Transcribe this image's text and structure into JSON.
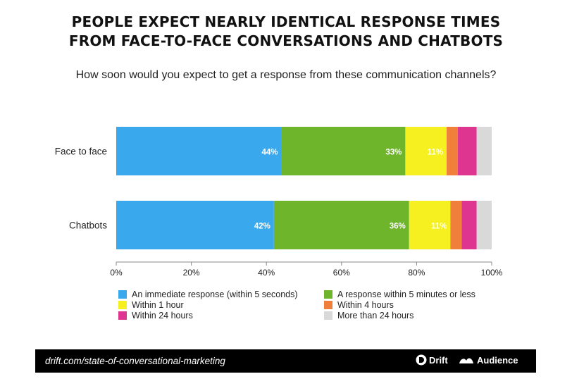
{
  "title_lines": [
    "PEOPLE EXPECT NEARLY IDENTICAL RESPONSE TIMES",
    "FROM FACE-TO-FACE CONVERSATIONS AND CHATBOTS"
  ],
  "subtitle": "How soon would you expect to get a response from these communication channels?",
  "chart_data": {
    "type": "bar",
    "orientation": "horizontal",
    "stacked": true,
    "categories": [
      "Face to face",
      "Chatbots"
    ],
    "xlim": [
      0,
      100
    ],
    "x_ticks": [
      "0%",
      "20%",
      "40%",
      "60%",
      "80%",
      "100%"
    ],
    "x_tick_values": [
      0,
      20,
      40,
      60,
      80,
      100
    ],
    "legend_position": "bottom",
    "series": [
      {
        "name": "An immediate response (within 5 seconds)",
        "color": "#3aa8ec",
        "values": [
          44,
          42
        ],
        "labels": [
          "44%",
          "42%"
        ]
      },
      {
        "name": "A response within 5 minutes or less",
        "color": "#6fb52c",
        "values": [
          33,
          36
        ],
        "labels": [
          "33%",
          "36%"
        ]
      },
      {
        "name": "Within 1 hour",
        "color": "#f6f021",
        "values": [
          11,
          11
        ],
        "labels": [
          "11%",
          "11%"
        ]
      },
      {
        "name": "Within 4 hours",
        "color": "#f07f3c",
        "values": [
          3,
          3
        ],
        "labels": [
          "",
          ""
        ]
      },
      {
        "name": "Within 24 hours",
        "color": "#dd3590",
        "values": [
          5,
          4
        ],
        "labels": [
          "",
          ""
        ]
      },
      {
        "name": "More than 24 hours",
        "color": "#d9d9d9",
        "values": [
          4,
          4
        ],
        "labels": [
          "",
          ""
        ]
      }
    ]
  },
  "footer": {
    "source": "drift.com/state-of-conversational-marketing",
    "brand_drift": "Drift",
    "brand_audience": "Audience"
  }
}
